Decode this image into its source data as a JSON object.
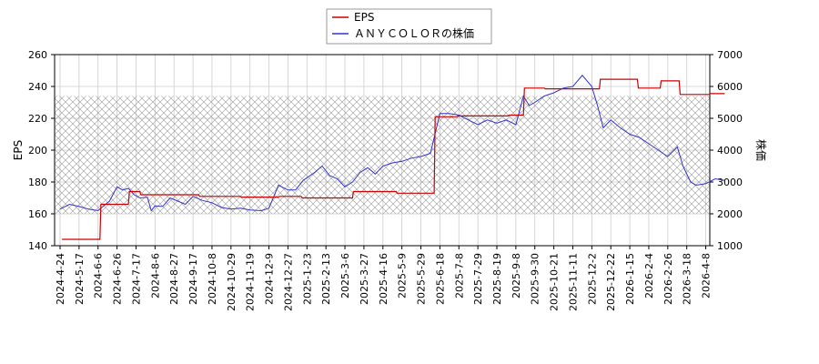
{
  "chart_data": {
    "type": "line",
    "legend": {
      "placement": "top-center",
      "entries": [
        {
          "label": "EPS",
          "color": "#cc0000"
        },
        {
          "label": "ＡＮＹＣＯＬＯＲの株価",
          "color": "#3333cc"
        }
      ]
    },
    "left_axis": {
      "label": "EPS",
      "range": [
        140,
        260
      ],
      "ticks": [
        "140",
        "160",
        "180",
        "200",
        "220",
        "240",
        "260"
      ]
    },
    "right_axis": {
      "label": "株価",
      "range": [
        1000,
        7000
      ],
      "ticks": [
        "1000",
        "2000",
        "3000",
        "4000",
        "5000",
        "6000",
        "7000"
      ]
    },
    "x_tick_labels": [
      "2024-4-24",
      "2024-5-17",
      "2024-6-6",
      "2024-6-26",
      "2024-7-17",
      "2024-8-6",
      "2024-8-27",
      "2024-9-17",
      "2024-10-8",
      "2024-10-29",
      "2024-11-19",
      "2024-12-9",
      "2024-12-27",
      "2025-1-23",
      "2025-2-13",
      "2025-3-6",
      "2025-3-27",
      "2025-4-16",
      "2025-5-9",
      "2025-5-29",
      "2025-6-18",
      "2025-7-8",
      "2025-7-29",
      "2025-8-19",
      "2025-9-8",
      "2025-9-30",
      "2025-10-21",
      "2025-11-11",
      "2025-12-2",
      "2025-12-22",
      "2026-1-15",
      "2026-2-4",
      "2026-2-26",
      "2026-3-18",
      "2026-4-8"
    ],
    "grid": true,
    "price_band": {
      "range": [
        2000,
        5700
      ],
      "style": "crosshatch"
    },
    "eps_series": {
      "name": "EPS",
      "color": "#cc0000",
      "points": [
        [
          0.1,
          144
        ],
        [
          2.1,
          144
        ],
        [
          2.15,
          166
        ],
        [
          3.6,
          166
        ],
        [
          3.65,
          174
        ],
        [
          4.2,
          174
        ],
        [
          4.25,
          172
        ],
        [
          7.3,
          172
        ],
        [
          7.35,
          171
        ],
        [
          9.5,
          171
        ],
        [
          9.55,
          170.5
        ],
        [
          11.5,
          170.5
        ],
        [
          11.55,
          171
        ],
        [
          12.7,
          171
        ],
        [
          12.75,
          170
        ],
        [
          15.4,
          170
        ],
        [
          15.45,
          174
        ],
        [
          17.7,
          174
        ],
        [
          17.75,
          173
        ],
        [
          19.7,
          173
        ],
        [
          19.75,
          221
        ],
        [
          20.9,
          221
        ],
        [
          20.95,
          221.5
        ],
        [
          23.6,
          221.5
        ],
        [
          23.65,
          222
        ],
        [
          24.4,
          222
        ],
        [
          24.45,
          239
        ],
        [
          25.5,
          239
        ],
        [
          25.55,
          238.5
        ],
        [
          28.4,
          238.5
        ],
        [
          28.45,
          244.5
        ],
        [
          30.4,
          244.5
        ],
        [
          30.45,
          239
        ],
        [
          31.6,
          239
        ],
        [
          31.65,
          243.5
        ],
        [
          32.6,
          243.5
        ],
        [
          32.65,
          235
        ],
        [
          34.2,
          235
        ],
        [
          34.25,
          235.5
        ],
        [
          35.0,
          235.5
        ]
      ]
    },
    "price_series": {
      "name": "ＡＮＹＣＯＬＯＲの株価",
      "color": "#3333cc",
      "points": [
        [
          0.0,
          2150
        ],
        [
          0.5,
          2300
        ],
        [
          1.0,
          2230
        ],
        [
          1.5,
          2150
        ],
        [
          2.0,
          2100
        ],
        [
          2.3,
          2250
        ],
        [
          2.6,
          2400
        ],
        [
          3.0,
          2850
        ],
        [
          3.3,
          2750
        ],
        [
          3.6,
          2800
        ],
        [
          3.9,
          2600
        ],
        [
          4.2,
          2500
        ],
        [
          4.6,
          2520
        ],
        [
          4.8,
          2100
        ],
        [
          5.0,
          2250
        ],
        [
          5.4,
          2230
        ],
        [
          5.8,
          2500
        ],
        [
          6.2,
          2400
        ],
        [
          6.6,
          2300
        ],
        [
          7.0,
          2550
        ],
        [
          7.5,
          2420
        ],
        [
          8.0,
          2350
        ],
        [
          8.5,
          2200
        ],
        [
          9.0,
          2150
        ],
        [
          9.5,
          2180
        ],
        [
          10.0,
          2120
        ],
        [
          10.6,
          2100
        ],
        [
          11.0,
          2180
        ],
        [
          11.5,
          2900
        ],
        [
          12.0,
          2750
        ],
        [
          12.4,
          2750
        ],
        [
          12.8,
          3050
        ],
        [
          13.4,
          3300
        ],
        [
          13.8,
          3500
        ],
        [
          14.2,
          3200
        ],
        [
          14.6,
          3100
        ],
        [
          15.0,
          2850
        ],
        [
          15.4,
          3000
        ],
        [
          15.8,
          3300
        ],
        [
          16.2,
          3450
        ],
        [
          16.6,
          3250
        ],
        [
          17.0,
          3500
        ],
        [
          17.5,
          3600
        ],
        [
          18.0,
          3650
        ],
        [
          18.5,
          3750
        ],
        [
          19.0,
          3800
        ],
        [
          19.5,
          3900
        ],
        [
          20.0,
          5150
        ],
        [
          20.5,
          5150
        ],
        [
          21.0,
          5100
        ],
        [
          21.5,
          4950
        ],
        [
          22.0,
          4800
        ],
        [
          22.5,
          4950
        ],
        [
          23.0,
          4850
        ],
        [
          23.5,
          4950
        ],
        [
          24.0,
          4800
        ],
        [
          24.4,
          5700
        ],
        [
          24.7,
          5400
        ],
        [
          25.0,
          5500
        ],
        [
          25.5,
          5700
        ],
        [
          26.0,
          5800
        ],
        [
          26.5,
          5950
        ],
        [
          27.0,
          6000
        ],
        [
          27.5,
          6350
        ],
        [
          28.0,
          6000
        ],
        [
          28.3,
          5400
        ],
        [
          28.6,
          4700
        ],
        [
          29.0,
          4950
        ],
        [
          29.5,
          4700
        ],
        [
          30.0,
          4500
        ],
        [
          30.5,
          4400
        ],
        [
          31.0,
          4200
        ],
        [
          31.5,
          4000
        ],
        [
          32.0,
          3800
        ],
        [
          32.5,
          4100
        ],
        [
          32.8,
          3500
        ],
        [
          33.2,
          3000
        ],
        [
          33.5,
          2900
        ],
        [
          34.0,
          2950
        ],
        [
          34.5,
          3100
        ],
        [
          35.0,
          3050
        ]
      ]
    }
  }
}
